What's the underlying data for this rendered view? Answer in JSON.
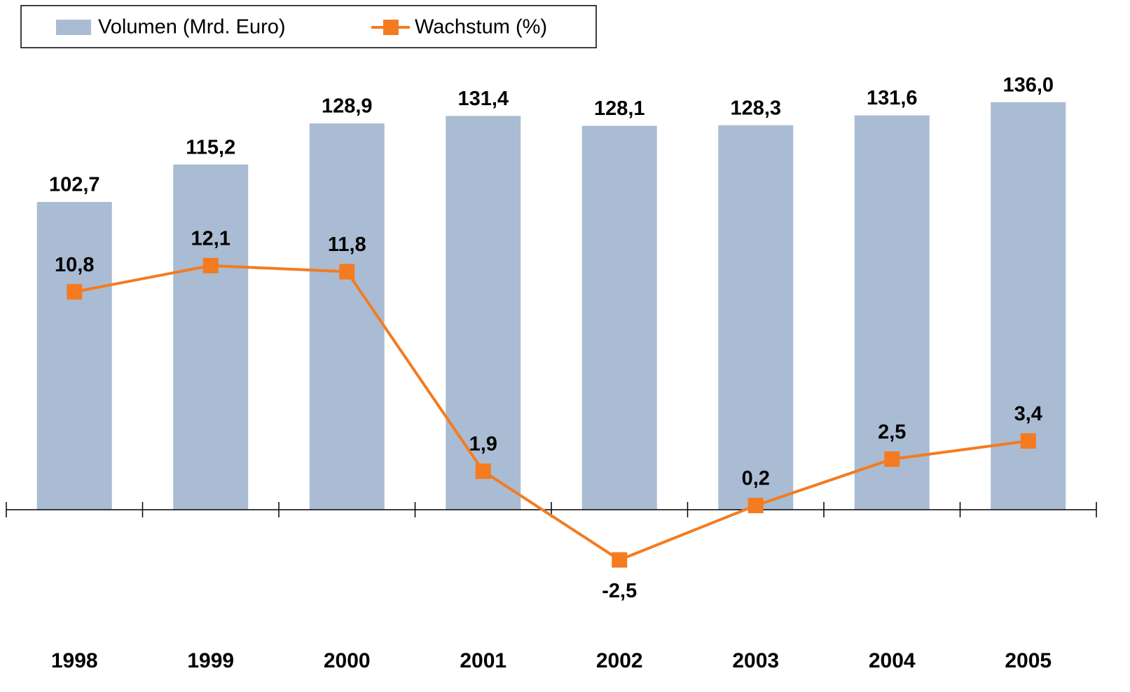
{
  "chart_data": {
    "type": "bar",
    "categories": [
      "1998",
      "1999",
      "2000",
      "2001",
      "2002",
      "2003",
      "2004",
      "2005"
    ],
    "series": [
      {
        "name": "Volumen (Mrd. Euro)",
        "type": "bar",
        "color": "#a9bcd3",
        "values": [
          102.7,
          115.2,
          128.9,
          131.4,
          128.1,
          128.3,
          131.6,
          136.0
        ],
        "value_labels": [
          "102,7",
          "115,2",
          "128,9",
          "131,4",
          "128,1",
          "128,3",
          "131,6",
          "136,0"
        ]
      },
      {
        "name": "Wachstum (%)",
        "type": "line",
        "axis": "y2",
        "color": "#f47b20",
        "values": [
          10.8,
          12.1,
          11.8,
          1.9,
          -2.5,
          0.2,
          2.5,
          3.4
        ],
        "value_labels": [
          "10,8",
          "12,1",
          "11,8",
          "1,9",
          "-2,5",
          "0,2",
          "2,5",
          "3,4"
        ]
      }
    ],
    "ylim": [
      -40.3,
      146.7
    ],
    "y2lim": [
      -6,
      21.8
    ],
    "legend": "top-left"
  }
}
